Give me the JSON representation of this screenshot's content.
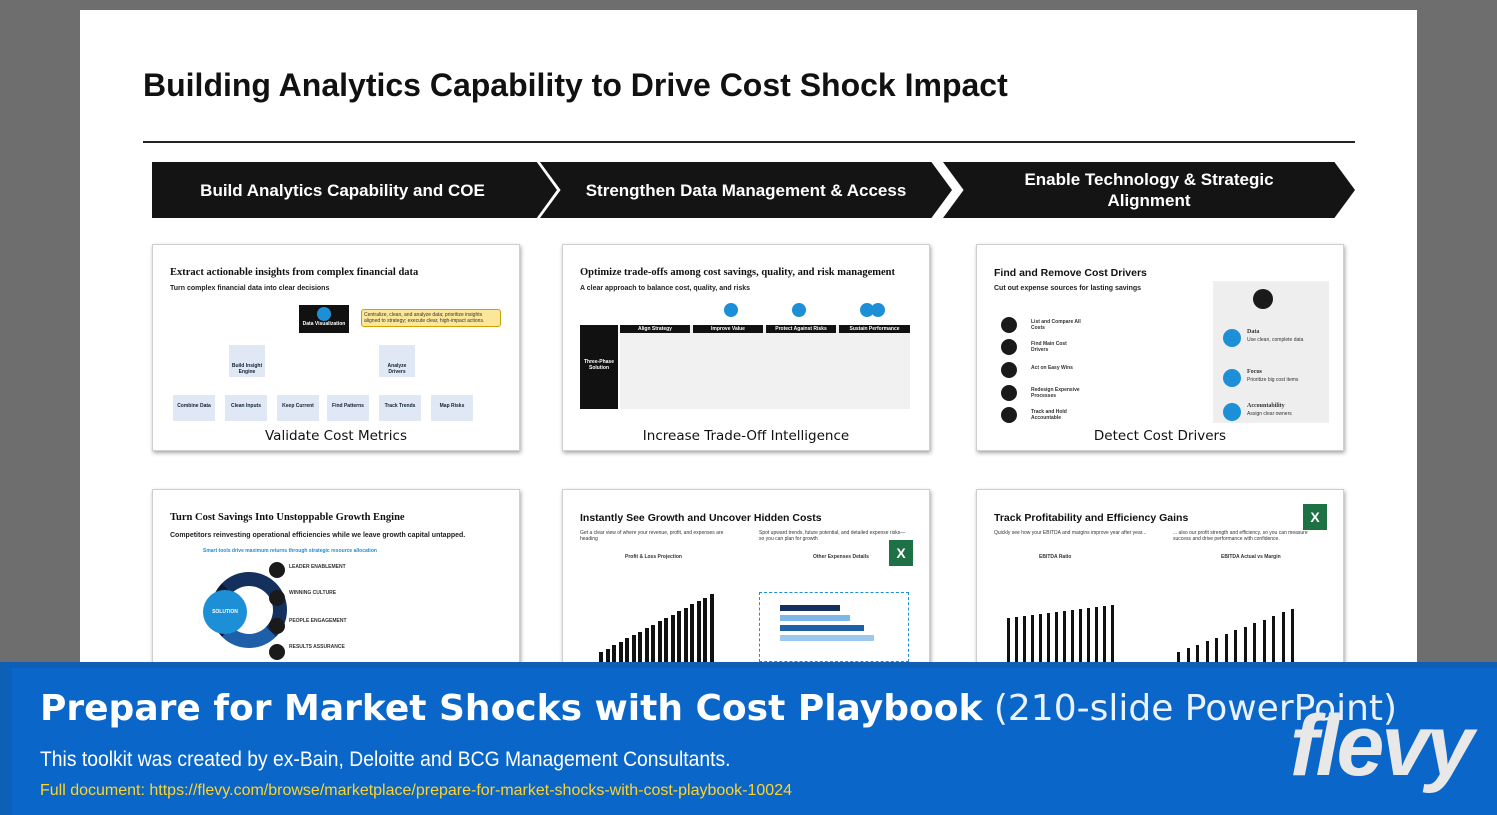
{
  "slide": {
    "title": "Building Analytics Capability to Drive Cost Shock Impact",
    "chevrons": [
      "Build Analytics Capability and COE",
      "Strengthen Data Management & Access",
      "Enable Technology & Strategic Alignment"
    ],
    "cards": [
      {
        "heading": "Extract actionable insights from complex financial data",
        "sub": "Turn complex financial data into clear decisions",
        "caption": "Validate Cost Metrics",
        "root": "Data Visualization",
        "callout": "Centralize, clean, and analyze data; prioritize insights aligned to strategy; execute clear, high-impact actions.",
        "mid": [
          "Build Insight Engine",
          "Analyze Drivers"
        ],
        "leaves": [
          "Combine Data",
          "Clean Inputs",
          "Keep Current",
          "Find Patterns",
          "Track Trends",
          "Map Risks"
        ]
      },
      {
        "heading": "Optimize trade-offs among cost savings, quality, and risk management",
        "sub": "A clear approach to balance cost, quality, and risks",
        "caption": "Increase Trade-Off Intelligence",
        "side": "Three-Phase Solution",
        "columns": [
          "Align Strategy",
          "Improve Value",
          "Protect Against Risks",
          "Sustain Performance"
        ]
      },
      {
        "heading": "Find and Remove Cost Drivers",
        "sub": "Cut out expense sources for lasting savings",
        "caption": "Detect Cost Drivers",
        "rows": [
          "List and Compare All Costs",
          "Find Main Cost Drivers",
          "Act on Easy Wins",
          "Redesign Expensive Processes",
          "Track and Hold Accountable"
        ],
        "right": [
          {
            "title": "Data",
            "text": "Use clean, complete data"
          },
          {
            "title": "Focus",
            "text": "Prioritize big cost items"
          },
          {
            "title": "Accountability",
            "text": "Assign clear owners"
          }
        ]
      },
      {
        "heading": "Turn Cost Savings Into Unstoppable Growth Engine",
        "sub": "Competitors reinvesting operational efficiencies while we leave growth capital untapped.",
        "tag": "Smart tools drive maximum returns through strategic resource allocation",
        "center": "SOLUTION",
        "items": [
          "LEADER ENABLEMENT",
          "WINNING CULTURE",
          "PEOPLE ENGAGEMENT",
          "RESULTS ASSURANCE"
        ]
      },
      {
        "heading": "Instantly See Growth and Uncover Hidden Costs",
        "sub_left": "Get a clear view of where your revenue, profit, and expenses are heading",
        "sub_right": "Spot upward trends, future potential, and detailed expense risks—so you can plan for growth",
        "chart_left": "Profit & Loss Projection",
        "chart_right": "Other Expenses Details"
      },
      {
        "heading": "Track Profitability and Efficiency Gains",
        "sub_left": "Quickly see how your EBITDA and margins improve year after year...",
        "sub_right": "... also our profit strength and efficiency, so you can measure success and drive performance with confidence.",
        "chart_left": "EBITDA Ratio",
        "chart_right": "EBITDA Actual vs Margin"
      }
    ]
  },
  "banner": {
    "title_bold": "Prepare for Market Shocks with Cost Playbook",
    "title_light": " (210-slide PowerPoint)",
    "subtitle": "This toolkit was created by ex-Bain, Deloitte and BCG Management Consultants.",
    "url": "Full document: https://flevy.com/browse/marketplace/prepare-for-market-shocks-with-cost-playbook-10024",
    "logo": "flevy"
  },
  "colors": {
    "accent": "#0a66c8",
    "url": "#ffd42a",
    "chevron": "#141414",
    "icon": "#1d8fd6"
  }
}
